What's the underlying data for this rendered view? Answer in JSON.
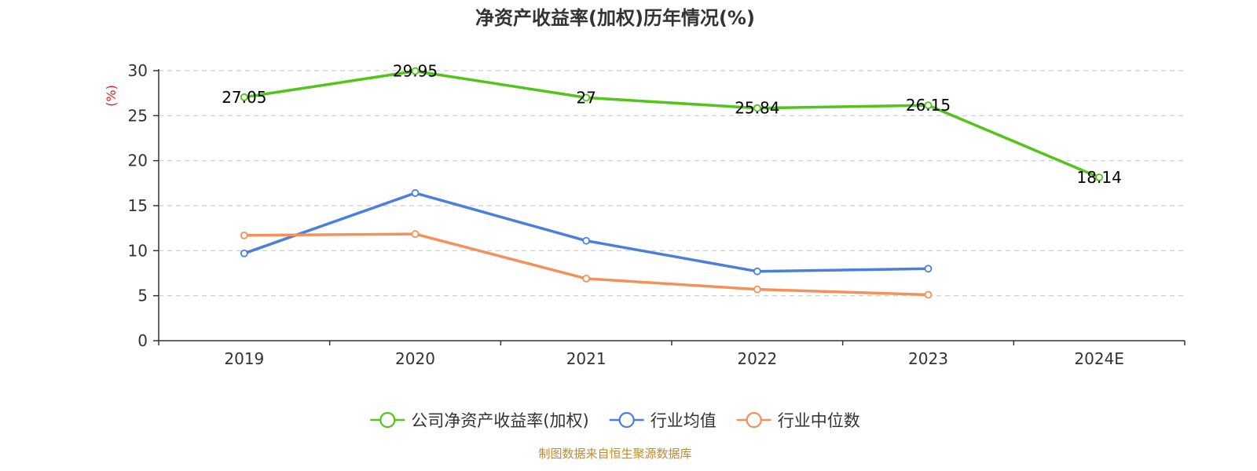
{
  "chart_data": {
    "type": "line",
    "title": "净资产收益率(加权)历年情况(%)",
    "ylabel": "(%)",
    "xlabel": "",
    "categories": [
      "2019",
      "2020",
      "2021",
      "2022",
      "2023",
      "2024E"
    ],
    "ylim": [
      0,
      30
    ],
    "yticks": [
      0,
      5,
      10,
      15,
      20,
      25,
      30
    ],
    "grid": true,
    "legend_position": "bottom-center",
    "series": [
      {
        "name": "公司净资产收益率(加权)",
        "color": "#52c41a",
        "values": [
          27.05,
          29.95,
          27,
          25.84,
          26.15,
          18.14
        ],
        "labels": [
          "27.05",
          "29.95",
          "27",
          "25.84",
          "26.15",
          "18.14"
        ],
        "show_labels": true
      },
      {
        "name": "行业均值",
        "color": "#4a7fe0",
        "values": [
          9.7,
          16.4,
          11.1,
          7.7,
          8.0,
          null
        ],
        "show_labels": false
      },
      {
        "name": "行业中位数",
        "color": "#f4905a",
        "values": [
          11.7,
          11.85,
          6.9,
          5.7,
          5.1,
          null
        ],
        "show_labels": false
      }
    ]
  },
  "ylabel_color": "#e02020",
  "source": {
    "text": "制图数据来自恒生聚源数据库",
    "color": "#c08a2c"
  }
}
